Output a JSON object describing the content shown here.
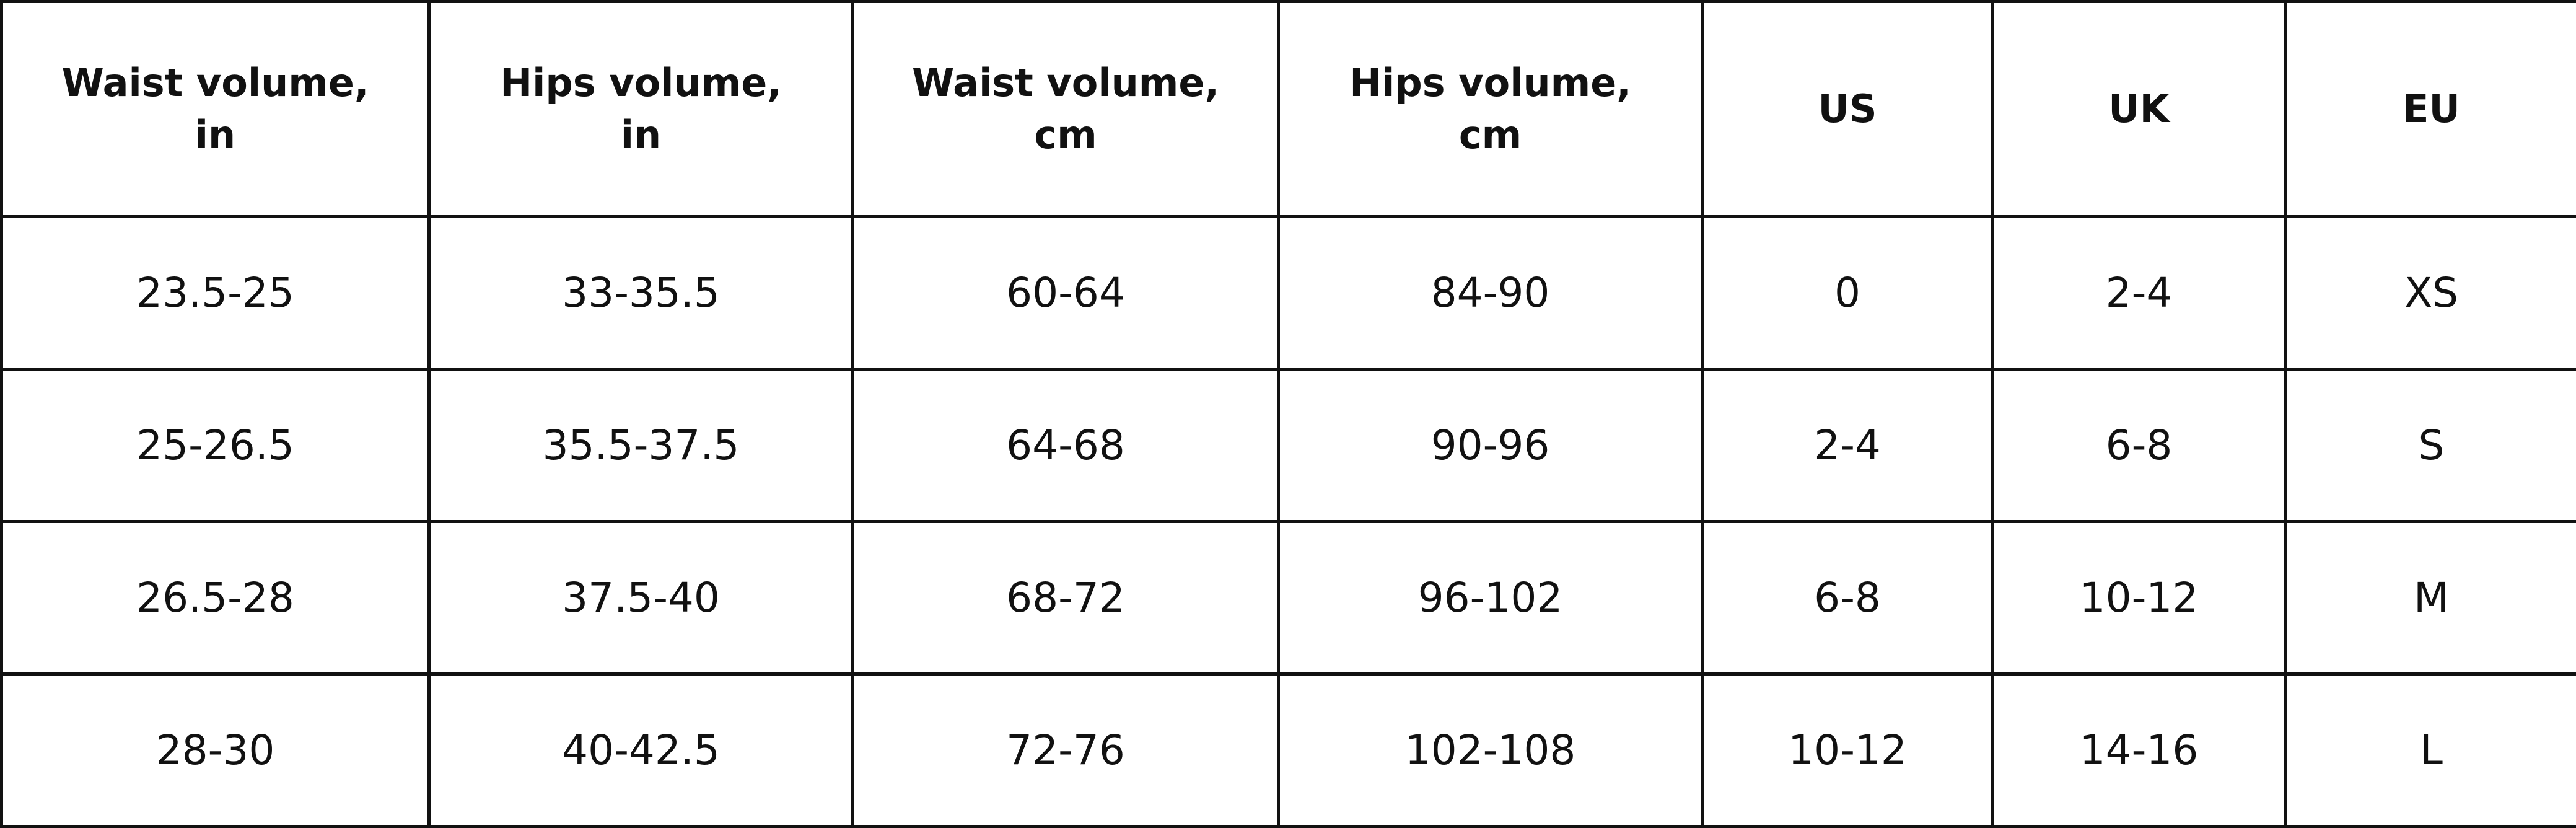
{
  "table": {
    "header": [
      "Waist volume,\nin",
      "Hips volume,\nin",
      "Waist volume,\ncm",
      "Hips volume,\ncm",
      "US",
      "UK",
      "EU"
    ],
    "rows": [
      [
        "23.5-25",
        "33-35.5",
        "60-64",
        "84-90",
        "0",
        "2-4",
        "XS"
      ],
      [
        "25-26.5",
        "35.5-37.5",
        "64-68",
        "90-96",
        "2-4",
        "6-8",
        "S"
      ],
      [
        "26.5-28",
        "37.5-40",
        "68-72",
        "96-102",
        "6-8",
        "10-12",
        "M"
      ],
      [
        "28-30",
        "40-42.5",
        "72-76",
        "102-108",
        "10-12",
        "14-16",
        "L"
      ]
    ]
  }
}
